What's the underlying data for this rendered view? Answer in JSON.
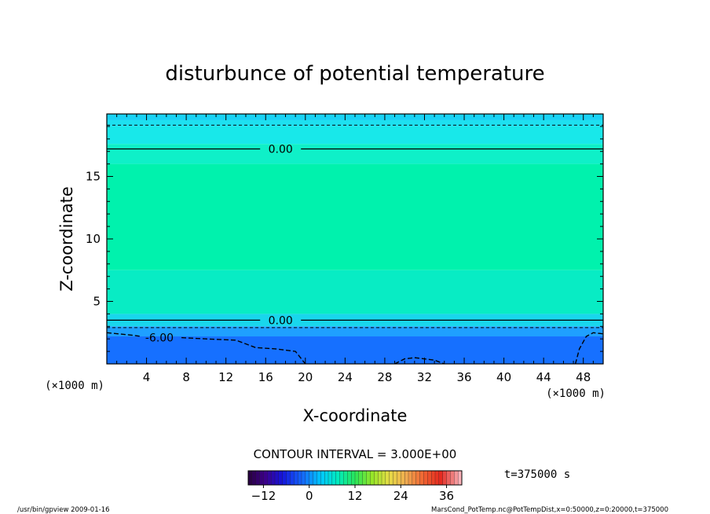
{
  "chart_data": {
    "type": "heatmap",
    "title": "disturbunce of potential temperature",
    "xlabel": "X-coordinate",
    "ylabel": "Z-coordinate",
    "x_unit": "(×1000 m)",
    "y_unit": "(×1000 m)",
    "xlim": [
      0,
      50
    ],
    "ylim": [
      0,
      20
    ],
    "x_ticks": [
      4,
      8,
      12,
      16,
      20,
      24,
      28,
      32,
      36,
      40,
      44,
      48
    ],
    "y_ticks": [
      5,
      10,
      15
    ],
    "layers": [
      {
        "z0": 19.5,
        "z1": 20.0,
        "color": "#1ad2f5"
      },
      {
        "z0": 19.0,
        "z1": 19.5,
        "color": "#1ee0f0"
      },
      {
        "z0": 17.6,
        "z1": 19.0,
        "color": "#18e8ea"
      },
      {
        "z0": 16.0,
        "z1": 17.6,
        "color": "#0ff0c8"
      },
      {
        "z0": 7.5,
        "z1": 16.0,
        "color": "#00f2ad"
      },
      {
        "z0": 4.0,
        "z1": 7.5,
        "color": "#08ecc4"
      },
      {
        "z0": 3.0,
        "z1": 4.0,
        "color": "#19d6ec"
      },
      {
        "z0": 2.2,
        "z1": 3.0,
        "color": "#1fa0ff"
      },
      {
        "z0": 0.0,
        "z1": 2.2,
        "color": "#1670ff"
      }
    ],
    "contours": [
      {
        "level": 0.0,
        "label": "0.00",
        "z": 17.2,
        "style": "solid",
        "label_x": 17.5
      },
      {
        "level": 0.0,
        "label": "0.00",
        "z": 3.5,
        "style": "solid",
        "label_x": 17.5
      },
      {
        "level": -3.0,
        "label": "",
        "z": 19.1,
        "style": "dashed",
        "label_x": null
      },
      {
        "level": -3.0,
        "label": "",
        "z": 2.9,
        "style": "dashed",
        "label_x": null
      }
    ],
    "neg_contour": {
      "label": "-6.00",
      "label_x": 5.3,
      "points": [
        [
          0,
          2.5
        ],
        [
          2.5,
          2.3
        ],
        [
          4,
          2.0
        ],
        [
          7,
          2.2
        ],
        [
          10,
          2.0
        ],
        [
          13,
          1.9
        ],
        [
          15,
          1.3
        ],
        [
          17,
          1.2
        ],
        [
          19,
          1.0
        ],
        [
          20,
          0.0
        ]
      ],
      "points2": [
        [
          29,
          0.0
        ],
        [
          30,
          0.4
        ],
        [
          31,
          0.5
        ],
        [
          33,
          0.3
        ],
        [
          34,
          0.0
        ]
      ],
      "points3": [
        [
          47.2,
          0.0
        ],
        [
          47.6,
          1.2
        ],
        [
          48.3,
          2.2
        ],
        [
          49,
          2.5
        ],
        [
          50,
          2.4
        ]
      ]
    },
    "colorbar": {
      "min": -16,
      "max": 40,
      "ticks": [
        -12,
        0,
        12,
        24,
        36
      ],
      "contour_interval": "CONTOUR INTERVAL = 3.000E+00"
    },
    "time_label": "t=375000 s"
  },
  "footer": {
    "left": "/usr/bin/gpview   2009-01-16",
    "right": "MarsCond_PotTemp.nc@PotTempDist,x=0:50000,z=0:20000,t=375000"
  }
}
